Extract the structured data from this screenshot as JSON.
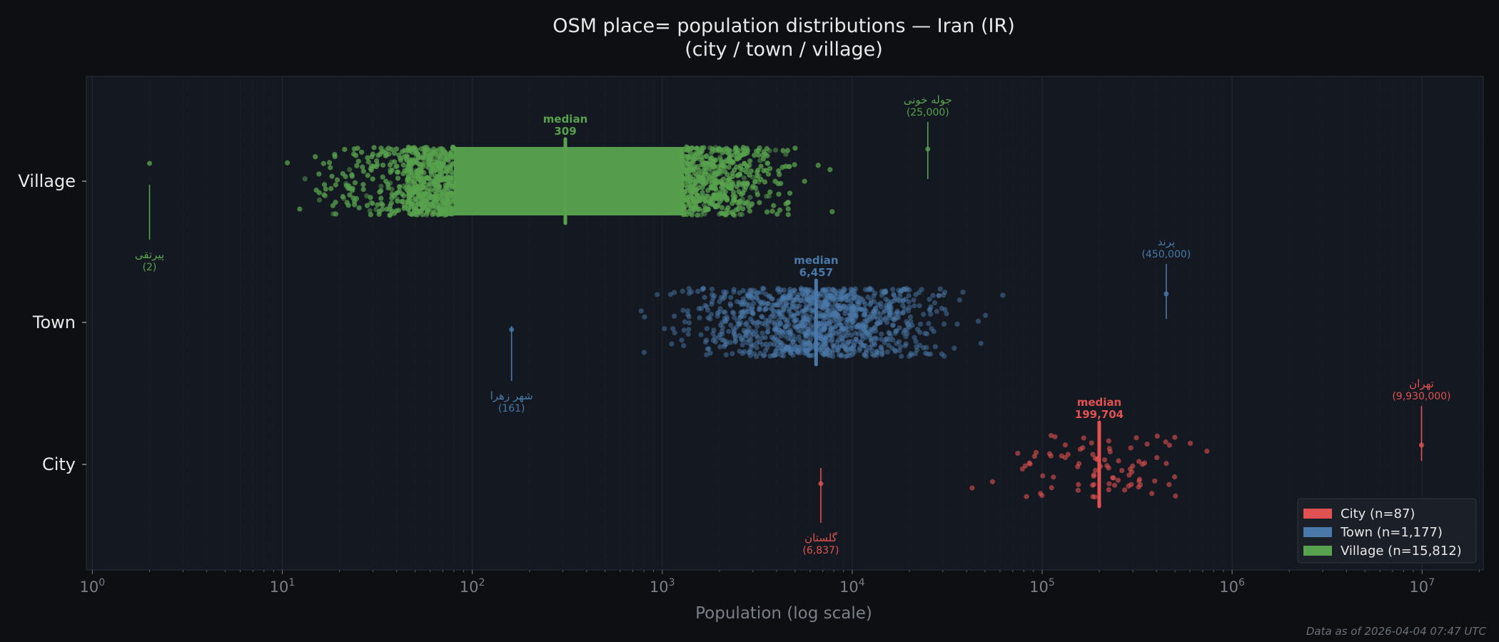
{
  "chart_data": {
    "type": "scatter",
    "title": "OSM place= population distributions — Iran (IR)",
    "subtitle": "(city / town / village)",
    "xlabel": "Population (log scale)",
    "xscale": "log",
    "xlim": [
      0.93,
      21000000
    ],
    "x_ticks": [
      {
        "value": 1,
        "base": "10",
        "exp": "0"
      },
      {
        "value": 10,
        "base": "10",
        "exp": "1"
      },
      {
        "value": 100,
        "base": "10",
        "exp": "2"
      },
      {
        "value": 1000,
        "base": "10",
        "exp": "3"
      },
      {
        "value": 10000,
        "base": "10",
        "exp": "4"
      },
      {
        "value": 100000,
        "base": "10",
        "exp": "5"
      },
      {
        "value": 1000000,
        "base": "10",
        "exp": "6"
      },
      {
        "value": 10000000,
        "base": "10",
        "exp": "7"
      }
    ],
    "categories": [
      "Village",
      "Town",
      "City"
    ],
    "grid": true,
    "legend_placement": "bottom-right",
    "series": [
      {
        "name": "City",
        "legend": "City  (n=87)",
        "color": "#e05252",
        "n": 87,
        "median": 199704,
        "median_label": "median",
        "median_value_label": "199,704",
        "min": {
          "name": "گلستان",
          "value": 6837,
          "value_label": "(6,837)"
        },
        "max": {
          "name": "تهران",
          "value": 9930000,
          "value_label": "(9,930,000)"
        },
        "dense_range": [
          40000,
          3000000
        ]
      },
      {
        "name": "Town",
        "legend": "Town  (n=1,177)",
        "color": "#4a78a8",
        "n": 1177,
        "median": 6457,
        "median_label": "median",
        "median_value_label": "6,457",
        "min": {
          "name": "شهر زهرا",
          "value": 161,
          "value_label": "(161)"
        },
        "max": {
          "name": "پرند",
          "value": 450000,
          "value_label": "(450,000)"
        },
        "dense_range": [
          600,
          100000
        ]
      },
      {
        "name": "Village",
        "legend": "Village  (n=15,812)",
        "color": "#58a14e",
        "n": 15812,
        "median": 309,
        "median_label": "median",
        "median_value_label": "309",
        "min": {
          "name": "پیرتقی",
          "value": 2,
          "value_label": "(2)"
        },
        "max": {
          "name": "جوله خونی",
          "value": 25000,
          "value_label": "(25,000)"
        },
        "dense_range": [
          80,
          1300
        ]
      }
    ]
  },
  "footer": "Data as of 2026-04-04 07:47 UTC"
}
